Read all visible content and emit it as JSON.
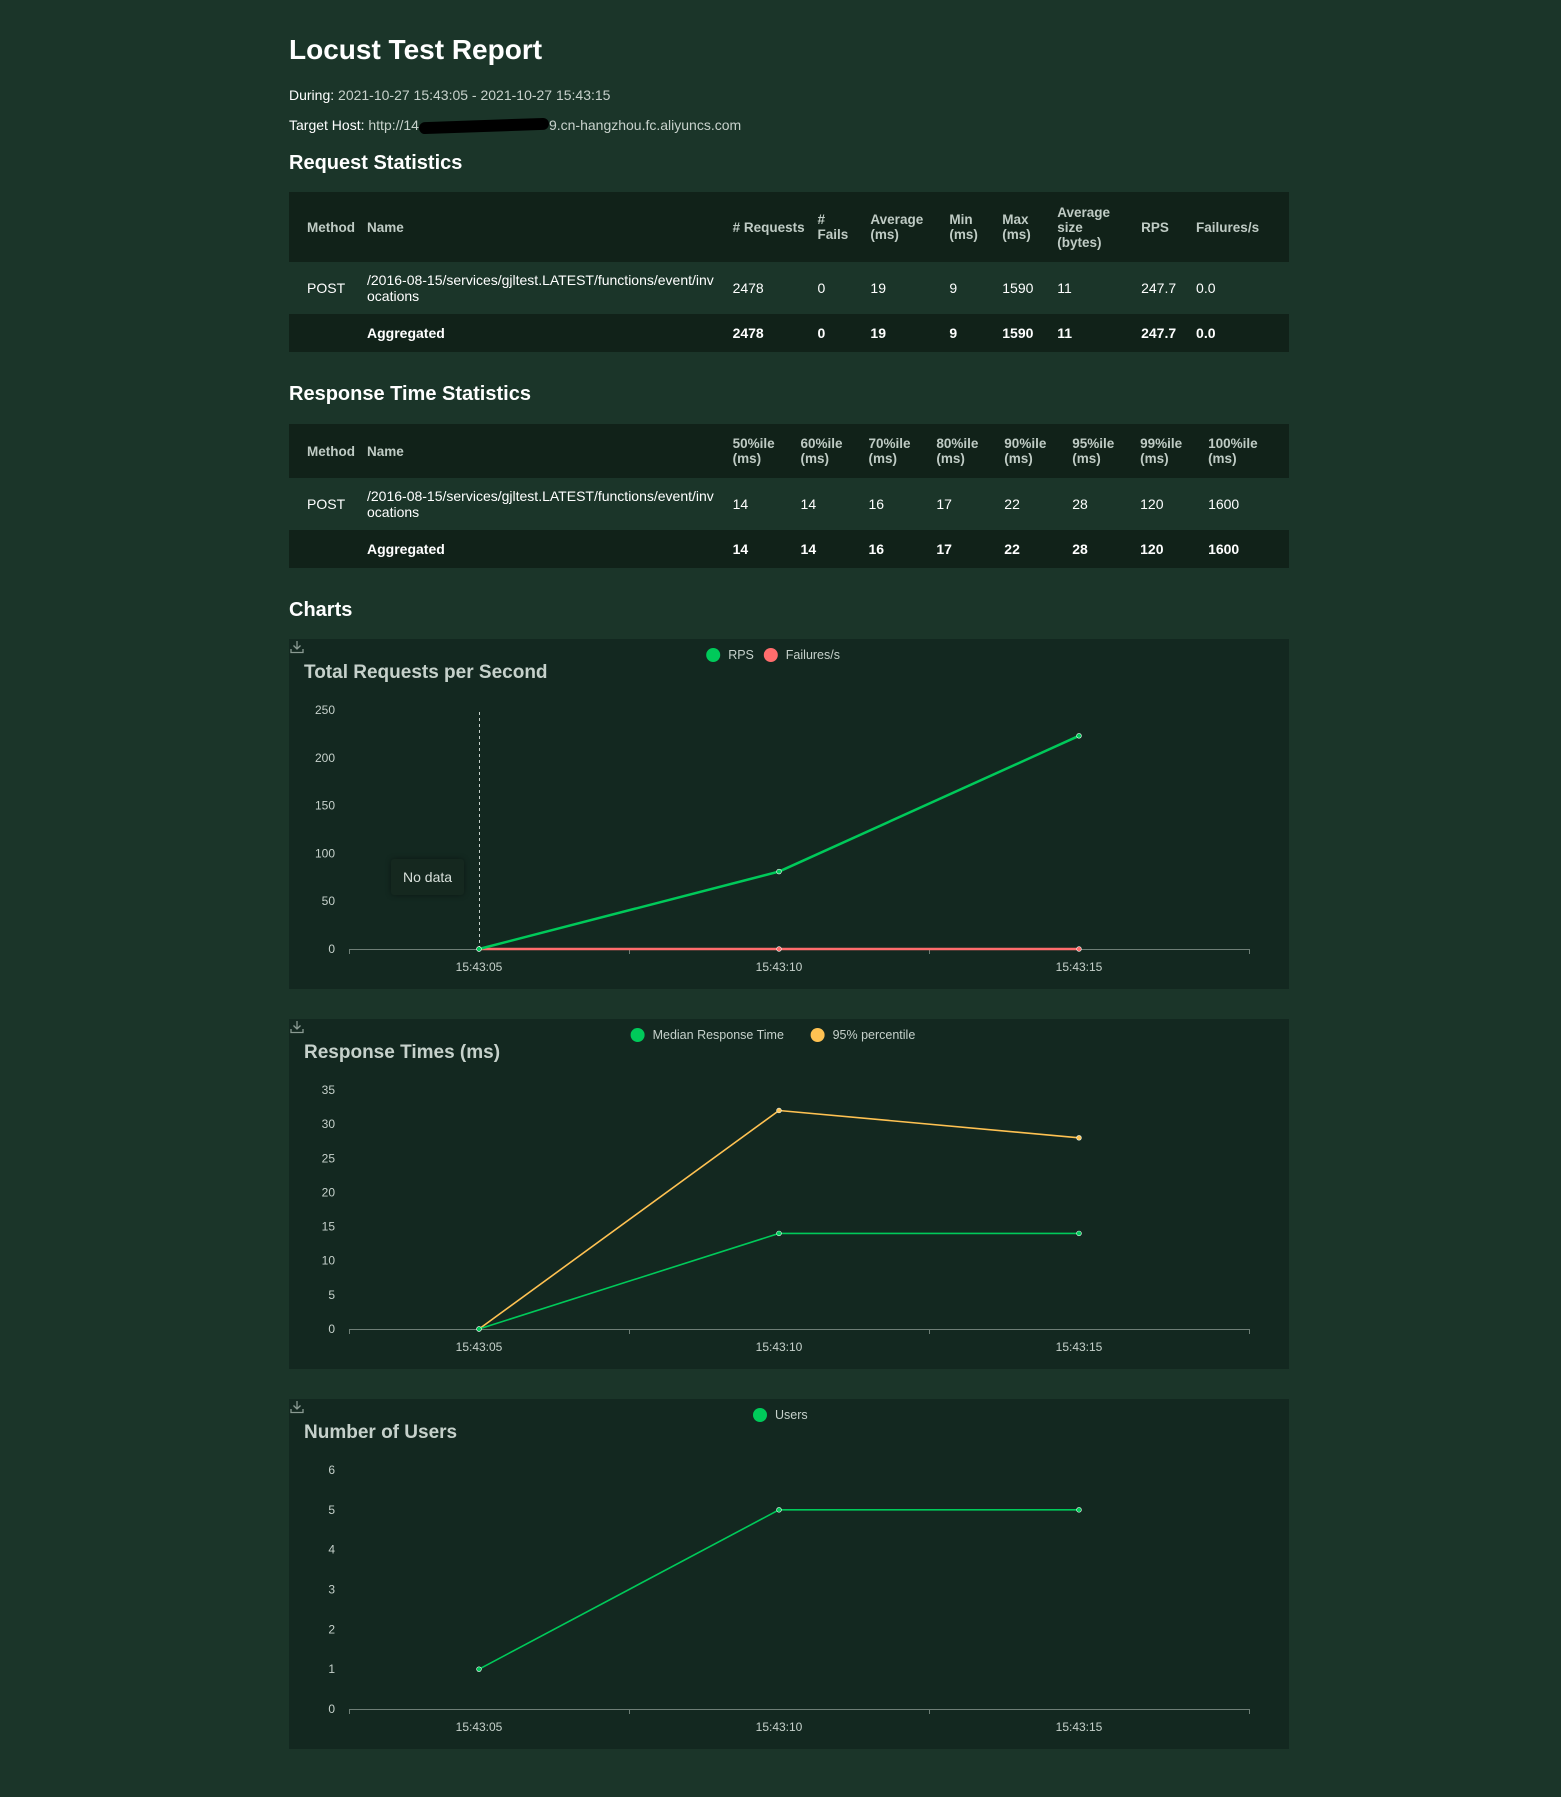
{
  "title": "Locust Test Report",
  "during": {
    "label": "During:",
    "value": "2021-10-27 15:43:05 - 2021-10-27 15:43:15"
  },
  "target_host": {
    "label": "Target Host:",
    "prefix": "http://14",
    "suffix": "9.cn-hangzhou.fc.aliyuncs.com"
  },
  "request_stats": {
    "heading": "Request Statistics",
    "headers": [
      "Method",
      "Name",
      "# Requests",
      "# Fails",
      "Average (ms)",
      "Min (ms)",
      "Max (ms)",
      "Average size (bytes)",
      "RPS",
      "Failures/s"
    ],
    "rows": [
      [
        "POST",
        "/2016-08-15/services/gjltest.LATEST/functions/event/invocations",
        "2478",
        "0",
        "19",
        "9",
        "1590",
        "11",
        "247.7",
        "0.0"
      ]
    ],
    "aggregated": [
      "",
      "Aggregated",
      "2478",
      "0",
      "19",
      "9",
      "1590",
      "11",
      "247.7",
      "0.0"
    ]
  },
  "response_stats": {
    "heading": "Response Time Statistics",
    "headers": [
      "Method",
      "Name",
      "50%ile (ms)",
      "60%ile (ms)",
      "70%ile (ms)",
      "80%ile (ms)",
      "90%ile (ms)",
      "95%ile (ms)",
      "99%ile (ms)",
      "100%ile (ms)"
    ],
    "rows": [
      [
        "POST",
        "/2016-08-15/services/gjltest.LATEST/functions/event/invocations",
        "14",
        "14",
        "16",
        "17",
        "22",
        "28",
        "120",
        "1600"
      ]
    ],
    "aggregated": [
      "",
      "Aggregated",
      "14",
      "14",
      "16",
      "17",
      "22",
      "28",
      "120",
      "1600"
    ]
  },
  "charts_heading": "Charts",
  "tooltip": "No data",
  "colors": {
    "green": "#00ca5a",
    "red": "#ff6d6d",
    "yellow": "#ffc252"
  },
  "chart_data": [
    {
      "type": "line",
      "title": "Total Requests per Second",
      "x": [
        "15:43:05",
        "15:43:10",
        "15:43:15"
      ],
      "yticks": [
        0,
        50,
        100,
        150,
        200,
        250
      ],
      "ylim": [
        0,
        250
      ],
      "legend_position": "top-center",
      "series": [
        {
          "name": "RPS",
          "color": "#00ca5a",
          "values": [
            0,
            81,
            223
          ]
        },
        {
          "name": "Failures/s",
          "color": "#ff6d6d",
          "values": [
            0,
            0,
            0
          ]
        }
      ]
    },
    {
      "type": "line",
      "title": "Response Times (ms)",
      "x": [
        "15:43:05",
        "15:43:10",
        "15:43:15"
      ],
      "yticks": [
        0,
        5,
        10,
        15,
        20,
        25,
        30,
        35
      ],
      "ylim": [
        0,
        35
      ],
      "legend_position": "top-center",
      "series": [
        {
          "name": "Median Response Time",
          "color": "#00ca5a",
          "values": [
            0,
            14,
            14
          ]
        },
        {
          "name": "95% percentile",
          "color": "#ffc252",
          "values": [
            0,
            32,
            28
          ]
        }
      ]
    },
    {
      "type": "line",
      "title": "Number of Users",
      "x": [
        "15:43:05",
        "15:43:10",
        "15:43:15"
      ],
      "yticks": [
        0,
        1,
        2,
        3,
        4,
        5,
        6
      ],
      "ylim": [
        0,
        6
      ],
      "legend_position": "top-center",
      "series": [
        {
          "name": "Users",
          "color": "#00ca5a",
          "values": [
            1,
            5,
            5
          ]
        }
      ]
    }
  ]
}
